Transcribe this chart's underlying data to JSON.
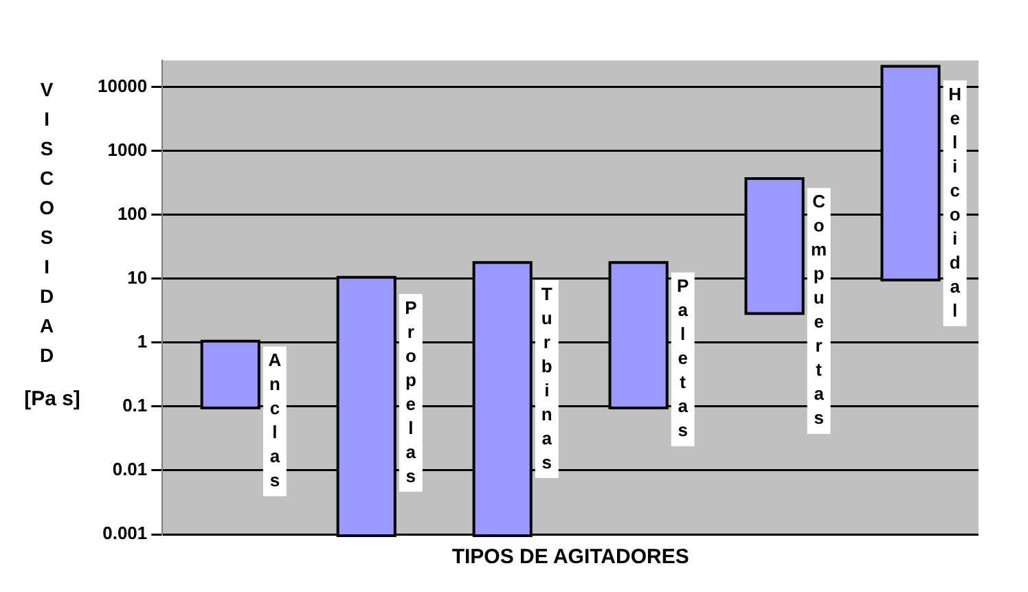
{
  "chart_data": {
    "type": "bar",
    "xlabel": "TIPOS DE AGITADORES",
    "ylabel": "VISCOSIDAD [Pa s]",
    "categories": [
      "Anclas",
      "Propelas",
      "Turbinas",
      "Paletas",
      "Compuertas",
      "Helicoidal"
    ],
    "base": [
      0.1,
      0.001,
      0.001,
      0.1,
      3,
      10
    ],
    "values": [
      0.9,
      9.999,
      16.999,
      16.9,
      347,
      19990
    ],
    "color": "#9999ff",
    "log": true,
    "ylim": [
      0.001,
      26000
    ],
    "yticks": [
      0.001,
      0.01,
      0.1,
      1,
      10,
      100,
      1000,
      10000
    ],
    "grid": "y",
    "tick_labels": "y",
    "legend": false
  }
}
